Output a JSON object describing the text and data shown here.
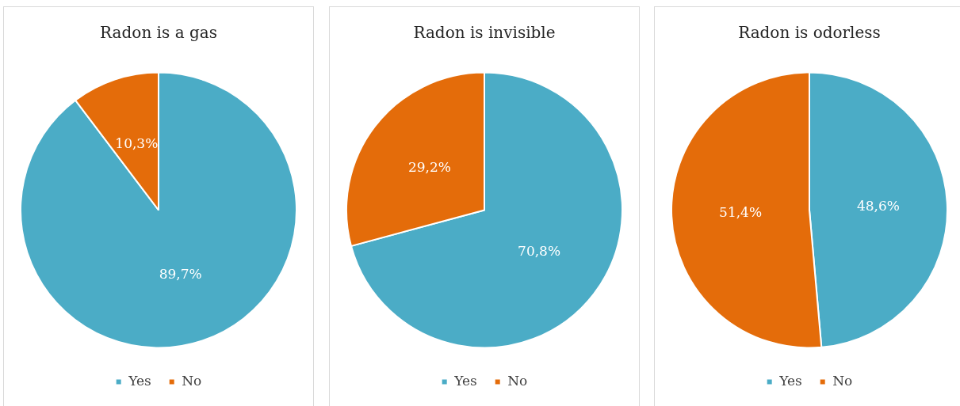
{
  "chart_data": [
    {
      "type": "pie",
      "title": "Radon is a gas",
      "categories": [
        "Yes",
        "No"
      ],
      "values": [
        89.7,
        10.3
      ],
      "colors": [
        "#4bacc6",
        "#e46c0a"
      ],
      "value_labels": [
        "89,7%",
        "10,3%"
      ],
      "legend": "bottom"
    },
    {
      "type": "pie",
      "title": "Radon is invisible",
      "categories": [
        "Yes",
        "No"
      ],
      "values": [
        70.8,
        29.2
      ],
      "colors": [
        "#4bacc6",
        "#e46c0a"
      ],
      "value_labels": [
        "70,8%",
        "29,2%"
      ],
      "legend": "bottom"
    },
    {
      "type": "pie",
      "title": "Radon is odorless",
      "categories": [
        "Yes",
        "No"
      ],
      "values": [
        48.6,
        51.4
      ],
      "colors": [
        "#4bacc6",
        "#e46c0a"
      ],
      "value_labels": [
        "48,6%",
        "51,4%"
      ],
      "legend": "bottom"
    }
  ]
}
